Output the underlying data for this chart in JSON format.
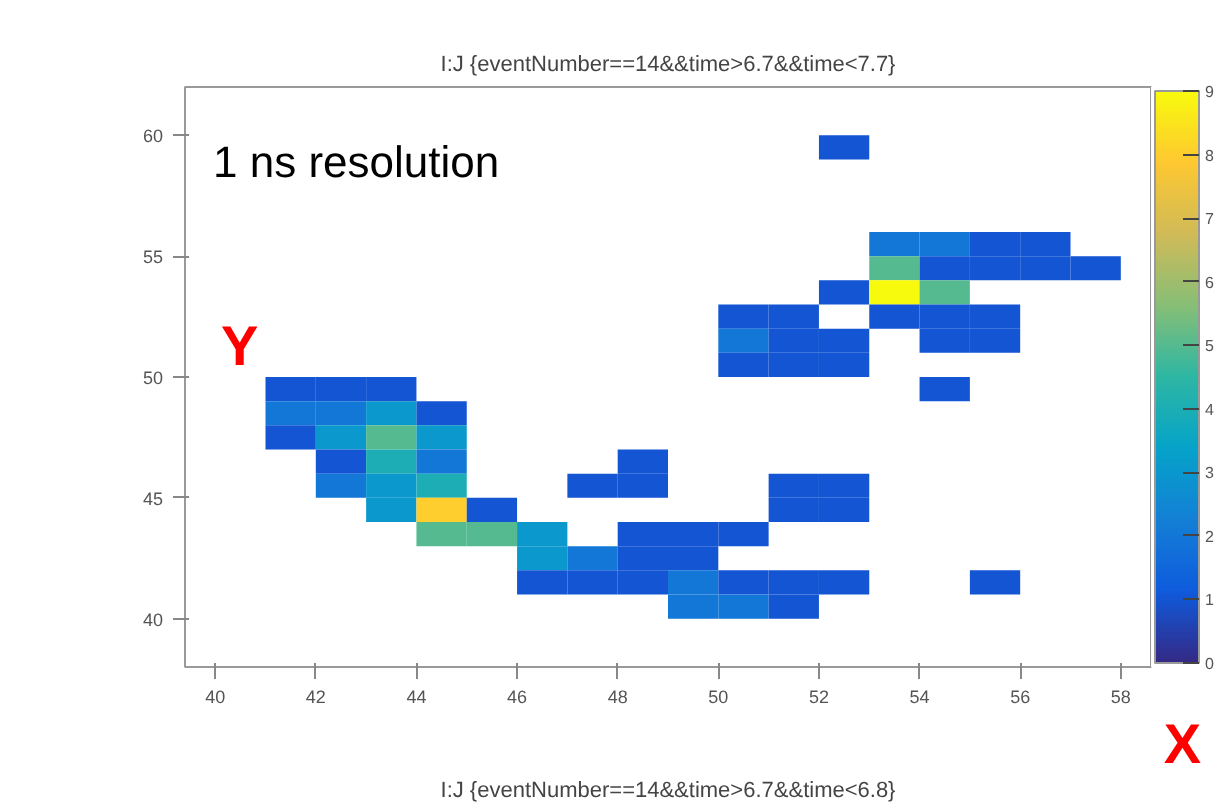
{
  "chart_data": {
    "type": "scatter",
    "title": "I:J {eventNumber==14&&time>6.7&&time<7.7}",
    "xlabel": "X",
    "ylabel": "Y",
    "annotations": [
      "1 ns  resolution",
      "I:J {eventNumber==14&&time>6.7&&time<6.8}"
    ],
    "marker": "square",
    "x": [
      52.5,
      53.5,
      54.5,
      55.5,
      56.5,
      53.5,
      54.5,
      55.5,
      56.5,
      57.5,
      52.5,
      53.5,
      54.5,
      50.5,
      51.5,
      53.5,
      54.5,
      55.5,
      50.5,
      51.5,
      52.5,
      54.5,
      55.5,
      50.5,
      51.5,
      52.5,
      41.5,
      42.5,
      43.5,
      54.5,
      41.5,
      42.5,
      43.5,
      44.5,
      41.5,
      42.5,
      43.5,
      44.5,
      42.5,
      43.5,
      44.5,
      48.5,
      42.5,
      43.5,
      44.5,
      47.5,
      48.5,
      51.5,
      52.5,
      43.5,
      44.5,
      45.5,
      51.5,
      52.5,
      44.5,
      45.5,
      46.5,
      48.5,
      49.5,
      50.5,
      46.5,
      47.5,
      48.5,
      49.5,
      46.5,
      47.5,
      48.5,
      49.5,
      50.5,
      51.5,
      52.5,
      55.5,
      49.5,
      50.5,
      51.5
    ],
    "values": [
      59.5,
      55.5,
      55.5,
      55.5,
      55.5,
      54.5,
      54.5,
      54.5,
      54.5,
      54.5,
      53.5,
      53.5,
      53.5,
      52.5,
      52.5,
      52.5,
      52.5,
      52.5,
      51.5,
      51.5,
      51.5,
      51.5,
      51.5,
      50.5,
      50.5,
      50.5,
      49.5,
      49.5,
      49.5,
      49.5,
      48.5,
      48.5,
      48.5,
      48.5,
      47.5,
      47.5,
      47.5,
      47.5,
      46.5,
      46.5,
      46.5,
      46.5,
      45.5,
      45.5,
      45.5,
      45.5,
      45.5,
      45.5,
      45.5,
      44.5,
      44.5,
      44.5,
      44.5,
      44.5,
      43.5,
      43.5,
      43.5,
      43.5,
      43.5,
      43.5,
      42.5,
      42.5,
      42.5,
      42.5,
      41.5,
      41.5,
      41.5,
      41.5,
      41.5,
      41.5,
      41.5,
      41.5,
      40.5,
      40.5,
      40.5
    ],
    "cvalues": [
      1,
      2,
      2,
      1,
      1,
      5,
      1,
      1,
      1,
      1,
      1,
      9,
      5,
      1,
      1,
      1,
      1,
      1,
      2,
      1,
      1,
      1,
      1,
      1,
      1,
      1,
      1,
      1,
      1,
      1,
      2,
      2,
      3,
      1,
      1,
      3,
      5,
      3,
      1,
      4,
      2,
      1,
      2,
      3,
      4,
      1,
      1,
      1,
      1,
      3,
      8,
      1,
      1,
      1,
      5,
      5,
      3,
      1,
      1,
      1,
      3,
      2,
      1,
      1,
      1,
      1,
      1,
      2,
      1,
      1,
      1,
      1,
      2,
      2,
      1
    ],
    "xlim": [
      39.4,
      58.6
    ],
    "ylim": [
      38,
      62
    ],
    "xticks": [
      40,
      42,
      44,
      46,
      48,
      50,
      52,
      54,
      56,
      58
    ],
    "yticks": [
      40,
      45,
      50,
      55,
      60
    ],
    "clim": [
      0,
      9
    ],
    "cticks": [
      0,
      1,
      2,
      3,
      4,
      5,
      6,
      7,
      8,
      9
    ],
    "grid": false
  }
}
